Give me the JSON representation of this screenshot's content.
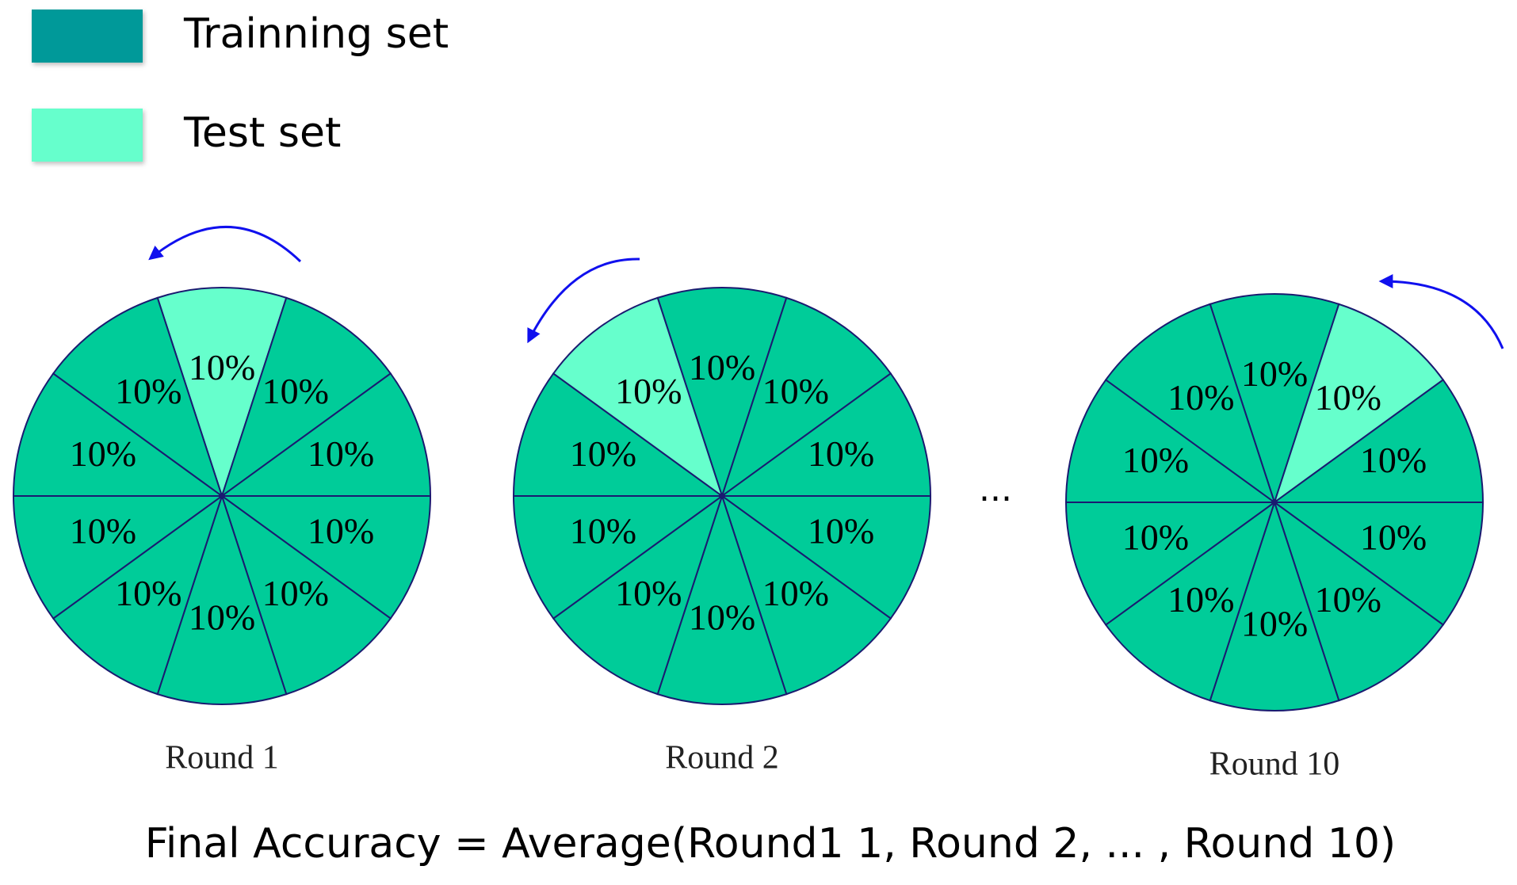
{
  "legend": [
    {
      "label": "Trainning set",
      "color": "#009999"
    },
    {
      "label": "Test set",
      "color": "#66ffcc"
    }
  ],
  "training_color": "#00cc99",
  "rounds": [
    {
      "label": "Round  1",
      "test_segment": 0,
      "segments": [
        "10%",
        "10%",
        "10%",
        "10%",
        "10%",
        "10%",
        "10%",
        "10%",
        "10%",
        "10%"
      ]
    },
    {
      "label": "Round  2",
      "test_segment": 9,
      "segments": [
        "10%",
        "10%",
        "10%",
        "10%",
        "10%",
        "10%",
        "10%",
        "10%",
        "10%",
        "10%"
      ]
    },
    {
      "label": "Round  10",
      "test_segment": 1,
      "segments": [
        "10%",
        "10%",
        "10%",
        "10%",
        "10%",
        "10%",
        "10%",
        "10%",
        "10%",
        "10%"
      ]
    }
  ],
  "ellipsis": "...",
  "formula": "Final Accuracy = Average(Round1 1, Round 2, ... , Round 10)"
}
